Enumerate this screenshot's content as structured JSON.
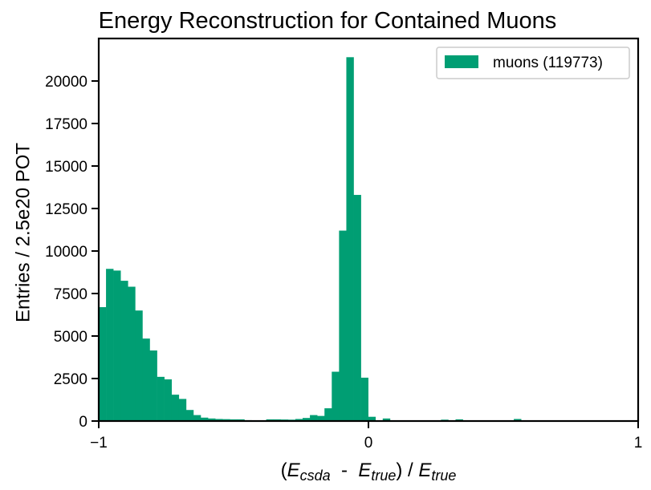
{
  "chart_data": {
    "type": "bar",
    "title": "Energy Reconstruction for Contained Muons",
    "xlabel": {
      "open": "(",
      "e1": "E",
      "sub1": "csda",
      "minus": "  -  ",
      "e2": "E",
      "sub2": "true",
      "mid": ") / ",
      "e3": "E",
      "sub3": "true"
    },
    "ylabel": "Entries / 2.5e20 POT",
    "xlim": [
      -1,
      1
    ],
    "ylim": [
      0,
      22500
    ],
    "xticks": [
      -1,
      0,
      1
    ],
    "xtick_labels": [
      "−1",
      "0",
      "1"
    ],
    "yticks": [
      0,
      2500,
      5000,
      7500,
      10000,
      12500,
      15000,
      17500,
      20000
    ],
    "ytick_labels": [
      "0",
      "2500",
      "5000",
      "7500",
      "10000",
      "12500",
      "15000",
      "17500",
      "20000"
    ],
    "legend_position": "top-right",
    "bin_width": 0.027,
    "series": [
      {
        "name": "muons (119773)",
        "color": "#009E73",
        "bin_left": [
          -1.0,
          -0.973,
          -0.946,
          -0.919,
          -0.892,
          -0.865,
          -0.838,
          -0.811,
          -0.784,
          -0.757,
          -0.73,
          -0.703,
          -0.676,
          -0.649,
          -0.622,
          -0.595,
          -0.568,
          -0.541,
          -0.514,
          -0.487,
          -0.46,
          -0.433,
          -0.406,
          -0.379,
          -0.352,
          -0.325,
          -0.298,
          -0.271,
          -0.244,
          -0.217,
          -0.19,
          -0.163,
          -0.136,
          -0.109,
          -0.082,
          -0.055,
          -0.028,
          -0.001,
          0.026,
          0.053,
          0.08,
          0.107,
          0.134,
          0.161,
          0.188,
          0.215,
          0.242,
          0.269,
          0.296,
          0.323,
          0.35,
          0.377,
          0.404,
          0.431,
          0.458,
          0.485,
          0.512,
          0.539,
          0.566,
          0.593,
          0.62,
          0.647,
          0.674,
          0.701,
          0.728,
          0.755,
          0.782,
          0.809,
          0.836,
          0.863,
          0.89,
          0.917,
          0.944,
          0.971
        ],
        "values": [
          6700,
          8950,
          8850,
          8250,
          7900,
          6500,
          4850,
          4150,
          2600,
          2450,
          1550,
          1300,
          650,
          350,
          200,
          150,
          120,
          110,
          100,
          100,
          50,
          40,
          30,
          100,
          100,
          90,
          80,
          120,
          180,
          350,
          300,
          750,
          2900,
          11200,
          21400,
          13300,
          2550,
          250,
          30,
          150,
          30,
          20,
          20,
          20,
          20,
          20,
          20,
          80,
          20,
          100,
          20,
          20,
          20,
          20,
          20,
          20,
          20,
          120,
          20,
          20,
          20,
          20,
          20,
          20,
          20,
          20,
          20,
          20,
          20,
          20,
          20,
          20,
          20,
          20
        ]
      }
    ]
  }
}
